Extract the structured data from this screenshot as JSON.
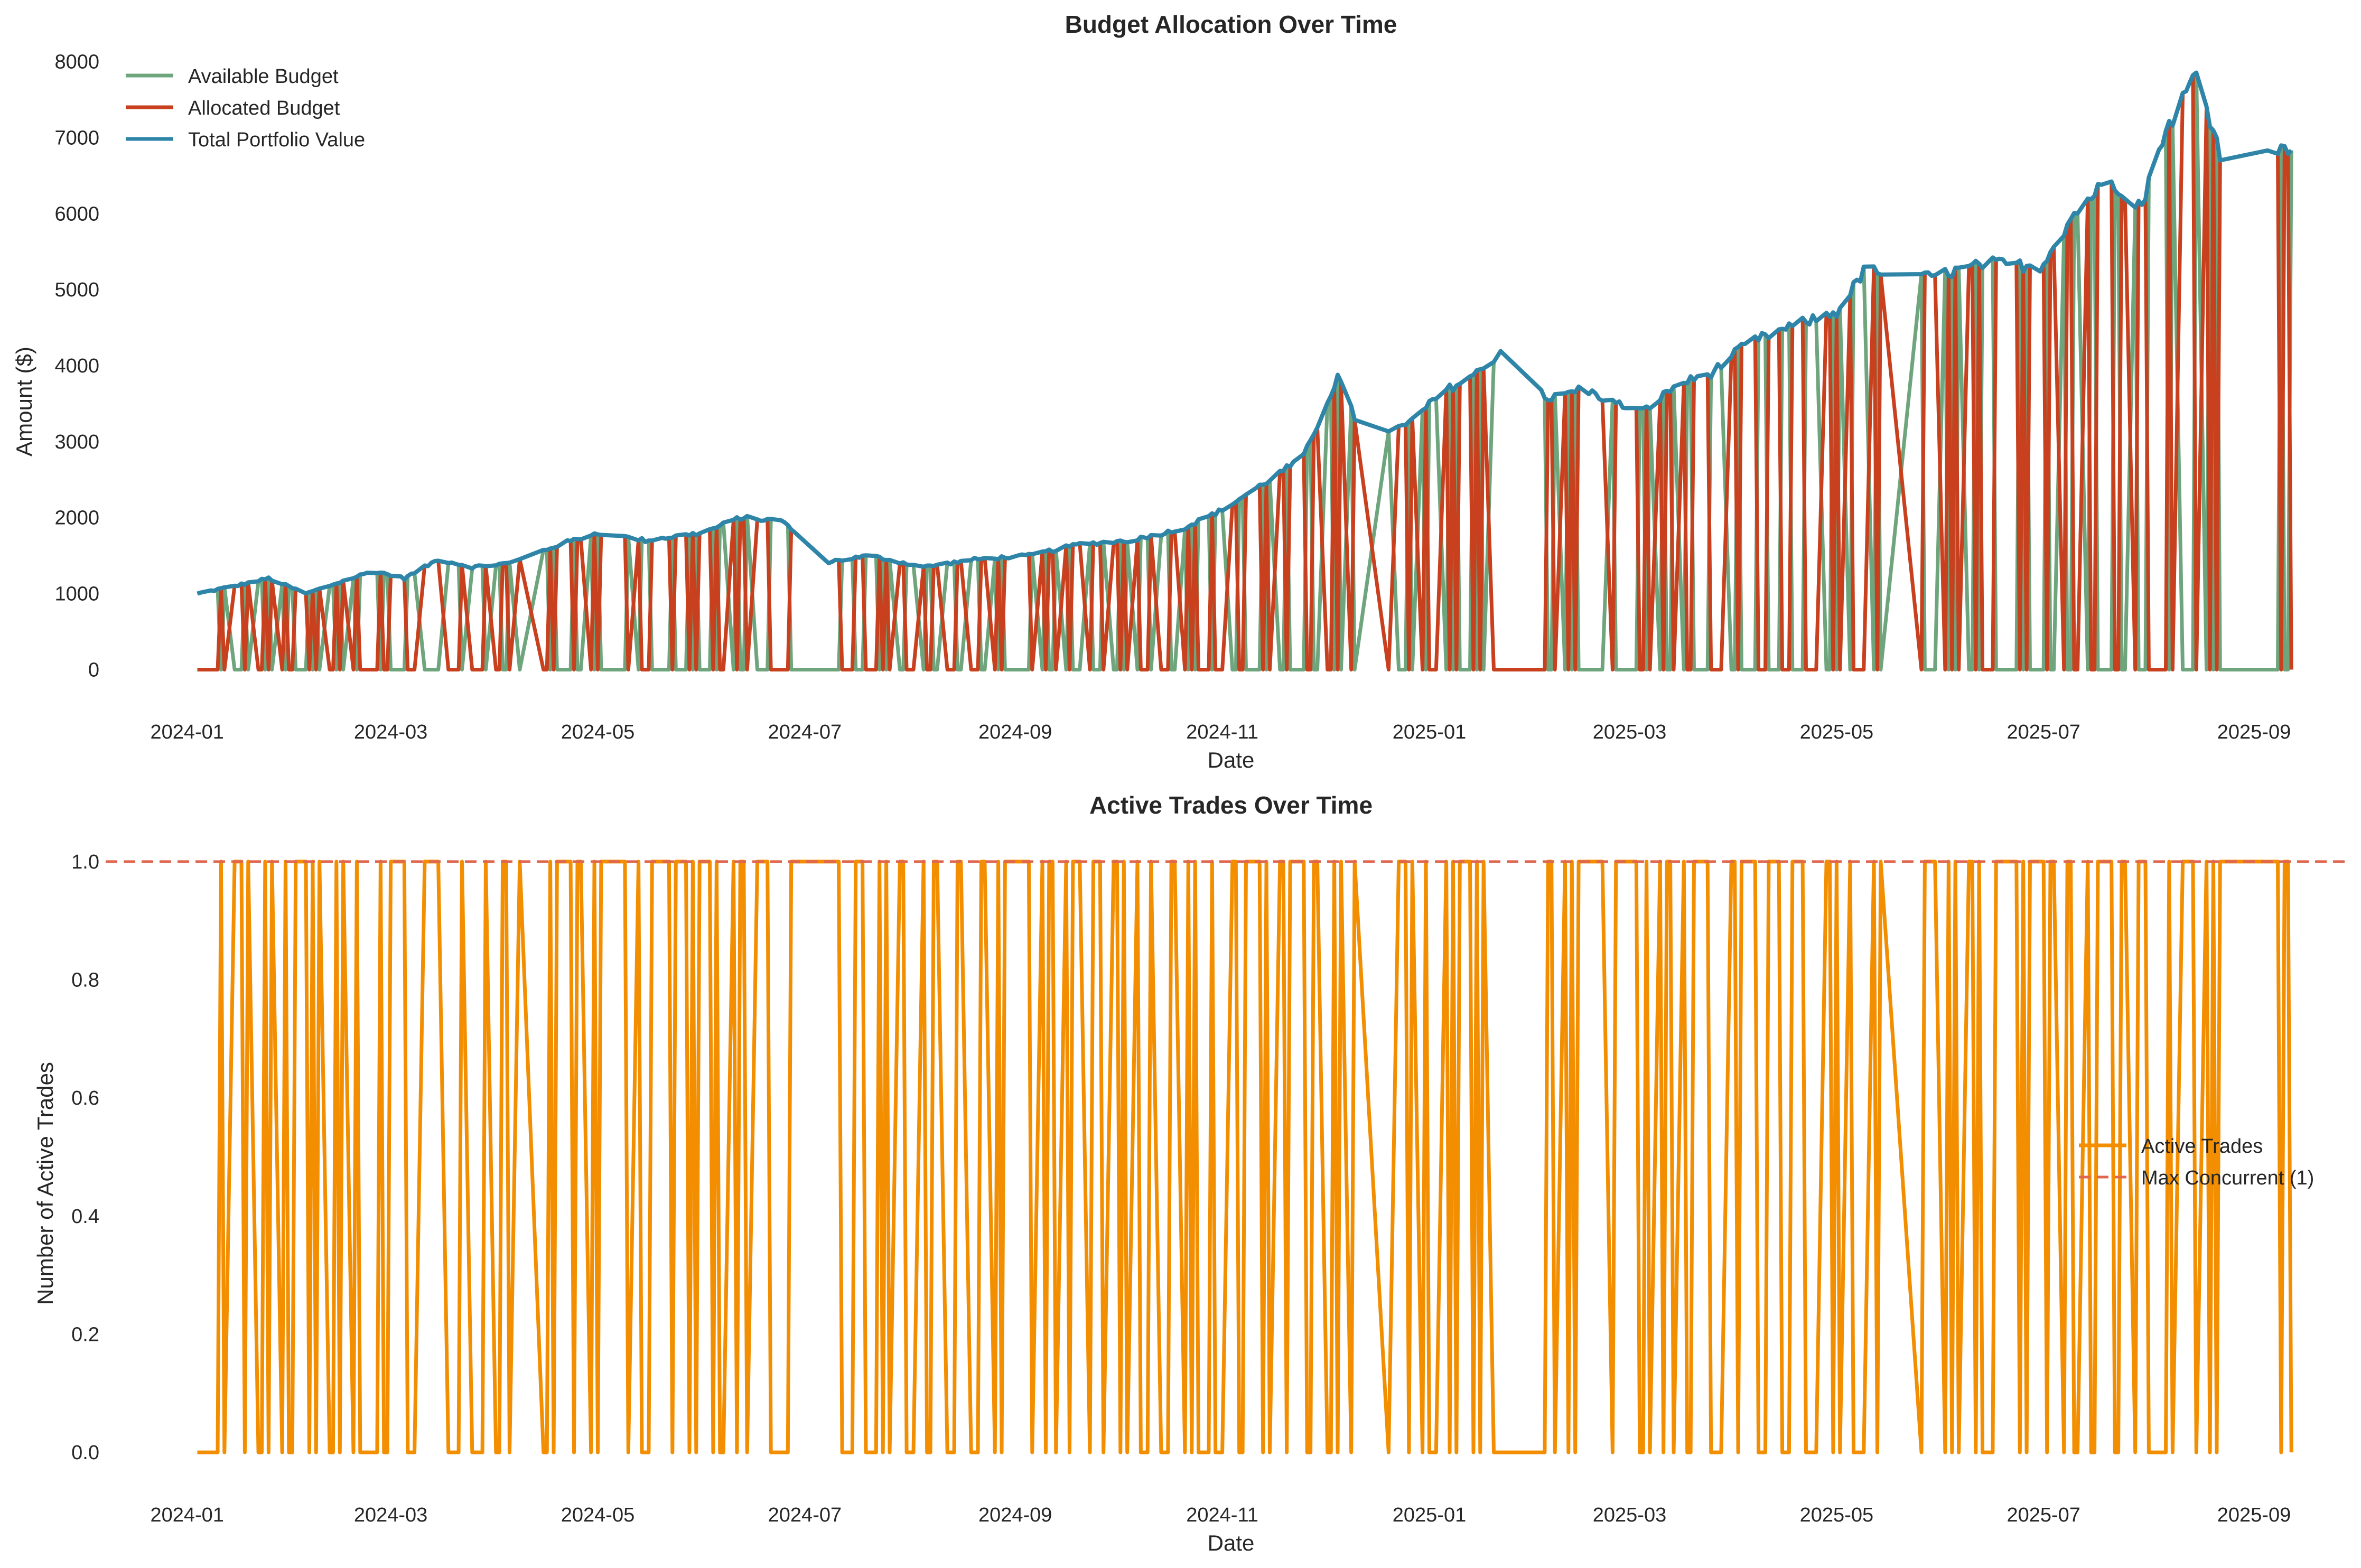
{
  "chart_data": [
    {
      "type": "line",
      "title": "Budget Allocation Over Time",
      "xlabel": "Date",
      "ylabel": "Amount ($)",
      "x_range": [
        "2023-12-08",
        "2025-09-28"
      ],
      "ylim": [
        -400,
        8150
      ],
      "x_tick_labels": [
        "2024-01",
        "2024-03",
        "2024-05",
        "2024-07",
        "2024-09",
        "2024-11",
        "2025-01",
        "2025-03",
        "2025-05",
        "2025-07",
        "2025-09"
      ],
      "y_ticks": [
        0,
        1000,
        2000,
        3000,
        4000,
        5000,
        6000,
        7000,
        8000
      ],
      "y_tick_labels": [
        "0",
        "1000",
        "2000",
        "3000",
        "4000",
        "5000",
        "6000",
        "7000",
        "8000"
      ],
      "grid": false,
      "legend_position": "top-left",
      "series": [
        {
          "name": "Available Budget",
          "color": "#6fa57d"
        },
        {
          "name": "Allocated Budget",
          "color": "#c8401e"
        },
        {
          "name": "Total Portfolio Value",
          "color": "#2e85a8"
        }
      ],
      "portfolio_value_points": [
        [
          "2024-01-04",
          1000
        ],
        [
          "2024-01-15",
          1100
        ],
        [
          "2024-01-25",
          1200
        ],
        [
          "2024-02-05",
          1000
        ],
        [
          "2024-02-15",
          1150
        ],
        [
          "2024-02-25",
          1300
        ],
        [
          "2024-03-05",
          1200
        ],
        [
          "2024-03-15",
          1450
        ],
        [
          "2024-03-25",
          1350
        ],
        [
          "2024-04-05",
          1400
        ],
        [
          "2024-04-20",
          1650
        ],
        [
          "2024-05-01",
          1800
        ],
        [
          "2024-05-15",
          1700
        ],
        [
          "2024-06-01",
          1800
        ],
        [
          "2024-06-12",
          2000
        ],
        [
          "2024-06-25",
          1950
        ],
        [
          "2024-07-05",
          1400
        ],
        [
          "2024-07-20",
          1500
        ],
        [
          "2024-08-05",
          1350
        ],
        [
          "2024-08-20",
          1450
        ],
        [
          "2024-09-05",
          1500
        ],
        [
          "2024-09-20",
          1650
        ],
        [
          "2024-10-05",
          1700
        ],
        [
          "2024-10-20",
          1850
        ],
        [
          "2024-11-01",
          2100
        ],
        [
          "2024-11-15",
          2500
        ],
        [
          "2024-11-25",
          2800
        ],
        [
          "2024-12-05",
          3850
        ],
        [
          "2024-12-12",
          3100
        ],
        [
          "2024-12-25",
          3200
        ],
        [
          "2025-01-05",
          3650
        ],
        [
          "2025-01-15",
          3900
        ],
        [
          "2025-01-25",
          4300
        ],
        [
          "2025-02-05",
          3550
        ],
        [
          "2025-02-15",
          3700
        ],
        [
          "2025-02-25",
          3500
        ],
        [
          "2025-03-05",
          3400
        ],
        [
          "2025-03-15",
          3750
        ],
        [
          "2025-03-25",
          3900
        ],
        [
          "2025-04-05",
          4300
        ],
        [
          "2025-04-20",
          4550
        ],
        [
          "2025-05-01",
          4700
        ],
        [
          "2025-05-10",
          5300
        ],
        [
          "2025-05-20",
          5100
        ],
        [
          "2025-06-01",
          5200
        ],
        [
          "2025-06-15",
          5350
        ],
        [
          "2025-06-30",
          5300
        ],
        [
          "2025-07-10",
          6000
        ],
        [
          "2025-07-20",
          6450
        ],
        [
          "2025-07-30",
          6100
        ],
        [
          "2025-08-05",
          7000
        ],
        [
          "2025-08-15",
          7850
        ],
        [
          "2025-08-22",
          6800
        ],
        [
          "2025-08-30",
          7150
        ],
        [
          "2025-09-08",
          6800
        ],
        [
          "2025-09-12",
          6900
        ]
      ]
    },
    {
      "type": "line",
      "title": "Active Trades Over Time",
      "xlabel": "Date",
      "ylabel": "Number of Active Trades",
      "x_range": [
        "2023-12-08",
        "2025-09-28"
      ],
      "ylim": [
        -0.05,
        1.05
      ],
      "x_tick_labels": [
        "2024-01",
        "2024-03",
        "2024-05",
        "2024-07",
        "2024-09",
        "2024-11",
        "2025-01",
        "2025-03",
        "2025-05",
        "2025-07",
        "2025-09"
      ],
      "y_ticks": [
        0.0,
        0.2,
        0.4,
        0.6,
        0.8,
        1.0
      ],
      "y_tick_labels": [
        "0.0",
        "0.2",
        "0.4",
        "0.6",
        "0.8",
        "1.0"
      ],
      "grid": false,
      "legend_position": "center-right",
      "series": [
        {
          "name": "Active Trades",
          "color": "#f28e00",
          "values": "alternating 0/1 daily"
        },
        {
          "name": "Max Concurrent (1)",
          "color": "#e0674f",
          "style": "dashed",
          "value": 1
        }
      ]
    }
  ]
}
